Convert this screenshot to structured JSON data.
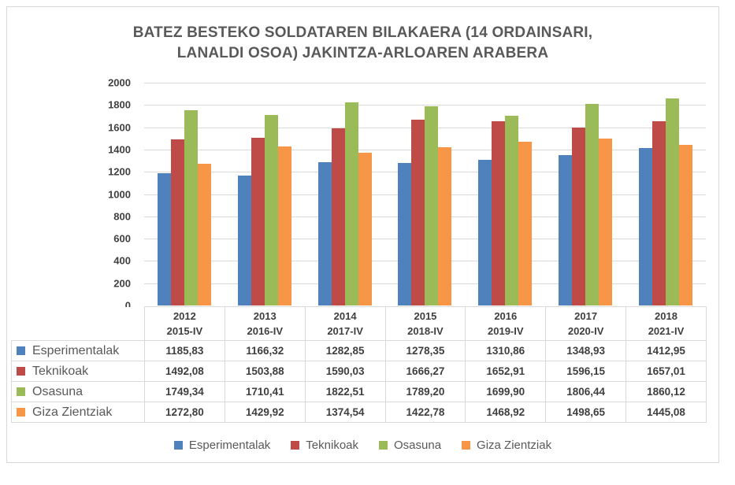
{
  "chart_data": {
    "type": "bar",
    "title": "BATEZ BESTEKO SOLDATAREN BILAKAERA (14 ORDAINSARI, LANALDI OSOA) JAKINTZA-ARLOAREN ARABERA",
    "title_lines": [
      "BATEZ BESTEKO SOLDATAREN BILAKAERA (14 ORDAINSARI,",
      "LANALDI OSOA) JAKINTZA-ARLOAREN ARABERA"
    ],
    "categories": [
      {
        "year": "2012",
        "period": "2015-IV"
      },
      {
        "year": "2013",
        "period": "2016-IV"
      },
      {
        "year": "2014",
        "period": "2017-IV"
      },
      {
        "year": "2015",
        "period": "2018-IV"
      },
      {
        "year": "2016",
        "period": "2019-IV"
      },
      {
        "year": "2017",
        "period": "2020-IV"
      },
      {
        "year": "2018",
        "period": "2021-IV"
      }
    ],
    "series": [
      {
        "name": "Esperimentalak",
        "color": "#4F81BD",
        "values": [
          1185.83,
          1166.32,
          1282.85,
          1278.35,
          1310.86,
          1348.93,
          1412.95
        ],
        "display_values": [
          "1185,83",
          "1166,32",
          "1282,85",
          "1278,35",
          "1310,86",
          "1348,93",
          "1412,95"
        ]
      },
      {
        "name": "Teknikoak",
        "color": "#BE4B48",
        "values": [
          1492.08,
          1503.88,
          1590.03,
          1666.27,
          1652.91,
          1596.15,
          1657.01
        ],
        "display_values": [
          "1492,08",
          "1503,88",
          "1590,03",
          "1666,27",
          "1652,91",
          "1596,15",
          "1657,01"
        ]
      },
      {
        "name": "Osasuna",
        "color": "#9BBB59",
        "values": [
          1749.34,
          1710.41,
          1822.51,
          1789.2,
          1699.9,
          1806.44,
          1860.12
        ],
        "display_values": [
          "1749,34",
          "1710,41",
          "1822,51",
          "1789,20",
          "1699,90",
          "1806,44",
          "1860,12"
        ]
      },
      {
        "name": "Giza Zientziak",
        "color": "#F79646",
        "values": [
          1272.8,
          1429.92,
          1374.54,
          1422.78,
          1468.92,
          1498.65,
          1445.08
        ],
        "display_values": [
          "1272,80",
          "1429,92",
          "1374,54",
          "1422,78",
          "1468,92",
          "1498,65",
          "1445,08"
        ]
      }
    ],
    "ylim": [
      0,
      2000
    ],
    "ytick_step": 200,
    "yticks": [
      "2000",
      "1800",
      "1600",
      "1400",
      "1200",
      "1000",
      "800",
      "600",
      "400",
      "200",
      "0"
    ],
    "grid": true,
    "legend_position": "bottom",
    "colors": {
      "title_text": "#595959",
      "axis_text": "#404040",
      "table_text": "#3F3F3F",
      "gridline": "#D9D9D9",
      "table_border": "#D9D9D9",
      "frame_border": "#D8D8D8",
      "background": "#FFFFFF"
    }
  }
}
